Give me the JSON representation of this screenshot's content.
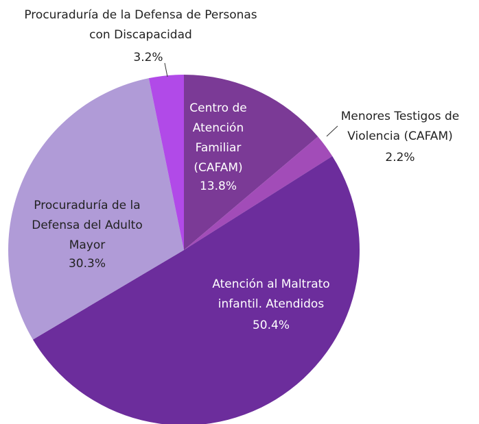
{
  "chart_data": {
    "type": "pie",
    "categories": [
      "Centro de Atención Familiar (CAFAM)",
      "Menores Testigos de Violencia (CAFAM)",
      "Atención al Maltrato infantil. Atendidos",
      "Procuraduría de la Defensa del Adulto Mayor",
      "Procuraduría de la Defensa de Personas con Discapacidad"
    ],
    "values": [
      13.8,
      2.2,
      50.4,
      30.3,
      3.2
    ],
    "value_labels": [
      "13.8%",
      "2.2%",
      "50.4%",
      "30.3%",
      "3.2%"
    ],
    "colors": [
      "#7b3a96",
      "#a24cb8",
      "#6c2d9c",
      "#b09bd7",
      "#b14ae8"
    ]
  }
}
